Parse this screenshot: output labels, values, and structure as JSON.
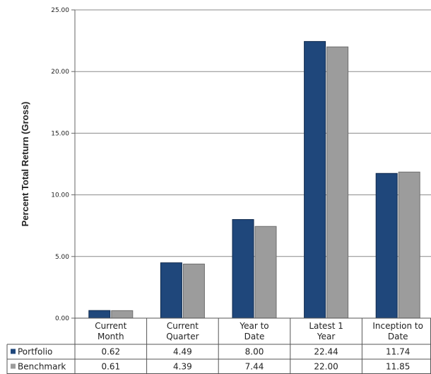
{
  "chart_data": {
    "type": "bar",
    "ylabel": "Percent Total Return (Gross)",
    "ylim": [
      0,
      25
    ],
    "yticks": [
      "0.00",
      "5.00",
      "10.00",
      "15.00",
      "20.00",
      "25.00"
    ],
    "categories": [
      [
        "Current",
        "Month"
      ],
      [
        "Current",
        "Quarter"
      ],
      [
        "Year to",
        "Date"
      ],
      [
        "Latest 1",
        "Year"
      ],
      [
        "Inception to",
        "Date"
      ]
    ],
    "series": [
      {
        "name": "Portfolio",
        "color": "#1f477b",
        "values": [
          0.62,
          4.49,
          8.0,
          22.44,
          11.74
        ],
        "labels": [
          "0.62",
          "4.49",
          "8.00",
          "22.44",
          "11.74"
        ]
      },
      {
        "name": "Benchmark",
        "color": "#9c9c9c",
        "values": [
          0.61,
          4.39,
          7.44,
          22.0,
          11.85
        ],
        "labels": [
          "0.61",
          "4.39",
          "7.44",
          "22.00",
          "11.85"
        ]
      }
    ],
    "grid": true,
    "legend": "data-table"
  }
}
